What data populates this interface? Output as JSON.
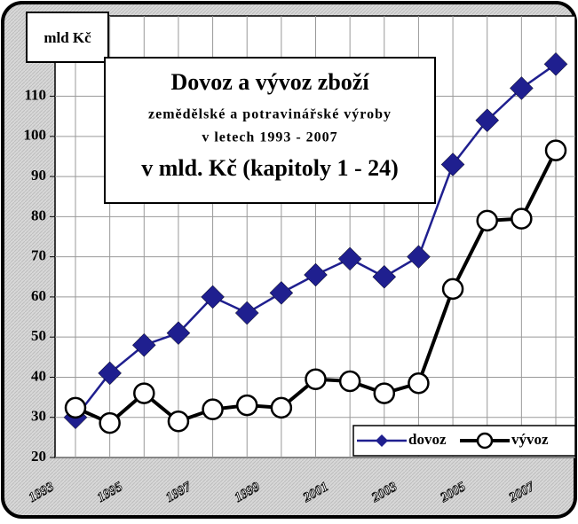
{
  "chart_data": {
    "type": "line",
    "title": "Dovoz a vývoz zboží",
    "subtitle": [
      "zemědělské a potravinářské výroby",
      "v letech 1993 - 2007"
    ],
    "title2": "v mld. Kč (kapitoly 1 - 24)",
    "y_label": "mld Kč",
    "categories": [
      "1993",
      null,
      "1995",
      null,
      "1997",
      null,
      "1999",
      null,
      "2001",
      null,
      "2003",
      null,
      "2005",
      null,
      "2007"
    ],
    "series": [
      {
        "name": "dovoz",
        "color": "#1f1f8f",
        "marker": "diamond",
        "values": [
          30,
          41,
          48,
          51,
          60,
          56,
          61,
          65.5,
          69.5,
          65,
          70,
          93,
          104,
          112,
          118
        ]
      },
      {
        "name": "vývoz",
        "color": "#000000",
        "marker": "circle",
        "values": [
          32.4,
          28.6,
          36,
          29,
          32,
          33,
          32.4,
          39.5,
          39,
          36,
          38.5,
          62,
          79,
          79.5,
          96.5
        ]
      }
    ],
    "ylim": [
      20,
      130
    ],
    "yticks": [
      20,
      30,
      40,
      50,
      60,
      70,
      80,
      90,
      100,
      110
    ],
    "grid": true,
    "legend": "lower right"
  }
}
